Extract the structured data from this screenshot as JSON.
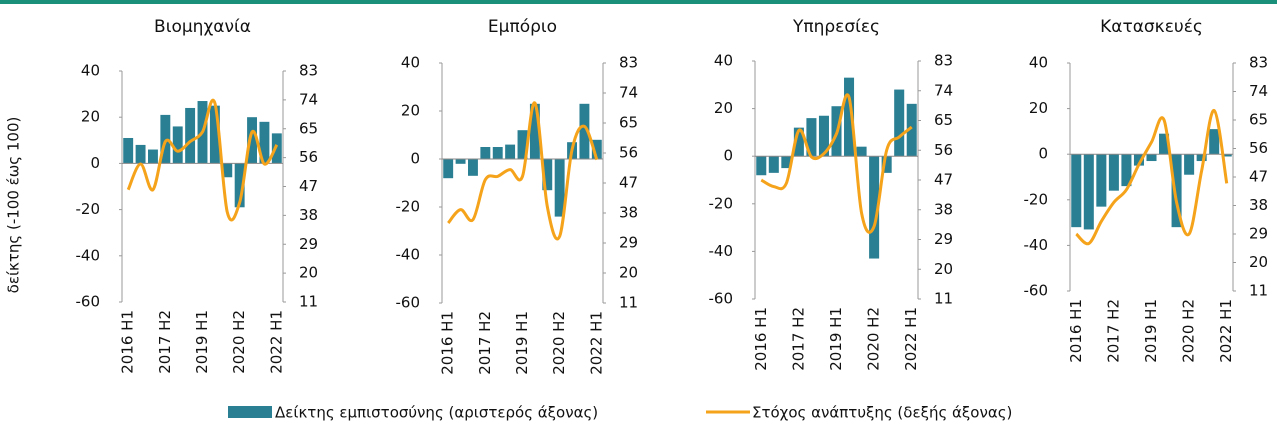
{
  "chart_data": [
    {
      "type": "bar",
      "title": "Βιομηχανία",
      "ylabel": "δείκτης (-100 έως 100)",
      "categories": [
        "2016 H1",
        null,
        null,
        "2017 H2",
        null,
        null,
        "2019 H1",
        null,
        null,
        "2020 H2",
        null,
        null,
        "2022 H1"
      ],
      "series": [
        {
          "name": "Δείκτης εμπιστοσύνης (αριστερός άξονας)",
          "type": "bar",
          "color": "#2a7f93",
          "values": [
            11,
            8,
            6,
            21,
            16,
            24,
            27,
            25,
            -6,
            -19,
            20,
            18,
            13
          ]
        },
        {
          "name": "Στόχος ανάπτυξης (δεξής άξονας)",
          "type": "line",
          "axis": "y2",
          "color": "#f5a31a",
          "values": [
            46,
            54,
            46,
            61,
            58,
            61,
            64,
            73,
            39,
            42,
            64,
            54,
            60
          ]
        }
      ],
      "ylim": [
        -60,
        40
      ],
      "yticks": [
        -60,
        -40,
        -20,
        0,
        20,
        40
      ],
      "y2lim": [
        11,
        83
      ],
      "y2ticks": [
        11,
        20,
        29,
        38,
        47,
        56,
        65,
        74,
        83
      ]
    },
    {
      "type": "bar",
      "title": "Εμπόριο",
      "categories": [
        "2016 H1",
        null,
        null,
        "2017 H2",
        null,
        null,
        "2019 H1",
        null,
        null,
        "2020 H2",
        null,
        null,
        "2022 H1"
      ],
      "series": [
        {
          "name": "Δείκτης εμπιστοσύνης (αριστερός άξονας)",
          "type": "bar",
          "color": "#2a7f93",
          "values": [
            -8,
            -2,
            -7,
            5,
            5,
            6,
            12,
            23,
            -13,
            -24,
            7,
            23,
            8
          ]
        },
        {
          "name": "Στόχος ανάπτυξης (δεξής άξονας)",
          "type": "line",
          "axis": "y2",
          "color": "#f5a31a",
          "values": [
            35,
            39,
            36,
            48,
            49,
            51,
            49,
            71,
            40,
            31,
            57,
            64,
            54
          ]
        }
      ],
      "ylim": [
        -60,
        40
      ],
      "yticks": [
        -60,
        -40,
        -20,
        0,
        20,
        40
      ],
      "y2lim": [
        11,
        83
      ],
      "y2ticks": [
        11,
        20,
        29,
        38,
        47,
        56,
        65,
        74,
        83
      ]
    },
    {
      "type": "bar",
      "title": "Υπηρεσίες",
      "categories": [
        "2016 H1",
        null,
        null,
        "2017 H2",
        null,
        null,
        "2019 H1",
        null,
        null,
        "2020 H2",
        null,
        null,
        "2022 H1"
      ],
      "series": [
        {
          "name": "Δείκτης εμπιστοσύνης (αριστερός άξονας)",
          "type": "bar",
          "color": "#2a7f93",
          "values": [
            -8,
            -7,
            -5,
            12,
            16,
            17,
            21,
            33,
            4,
            -43,
            -7,
            28,
            22
          ]
        },
        {
          "name": "Στόχος ανάπτυξης (δεξής άξονας)",
          "type": "line",
          "axis": "y2",
          "color": "#f5a31a",
          "values": [
            47,
            45,
            46,
            62,
            54,
            55,
            61,
            72,
            37,
            33,
            56,
            60,
            63
          ]
        }
      ],
      "ylim": [
        -60,
        40
      ],
      "yticks": [
        -60,
        -40,
        -20,
        0,
        20,
        40
      ],
      "y2lim": [
        11,
        83
      ],
      "y2ticks": [
        11,
        20,
        29,
        38,
        47,
        56,
        65,
        74,
        83
      ]
    },
    {
      "type": "bar",
      "title": "Κατασκευές",
      "categories": [
        "2016 H1",
        null,
        null,
        "2017 H2",
        null,
        null,
        "2019 H1",
        null,
        null,
        "2020 H2",
        null,
        null,
        "2022 H1"
      ],
      "series": [
        {
          "name": "Δείκτης εμπιστοσύνης (αριστερός άξονας)",
          "type": "bar",
          "color": "#2a7f93",
          "values": [
            -32,
            -33,
            -23,
            -16,
            -14,
            -5,
            -3,
            9,
            -32,
            -9,
            -3,
            11,
            -1
          ]
        },
        {
          "name": "Στόχος ανάπτυξης (δεξής άξονας)",
          "type": "line",
          "axis": "y2",
          "color": "#f5a31a",
          "values": [
            29,
            26,
            33,
            39,
            43,
            51,
            58,
            65,
            39,
            29,
            49,
            68,
            45
          ]
        }
      ],
      "ylim": [
        -60,
        40
      ],
      "yticks": [
        -60,
        -40,
        -20,
        0,
        20,
        40
      ],
      "y2lim": [
        11,
        83
      ],
      "y2ticks": [
        11,
        20,
        29,
        38,
        47,
        56,
        65,
        74,
        83
      ]
    }
  ]
}
